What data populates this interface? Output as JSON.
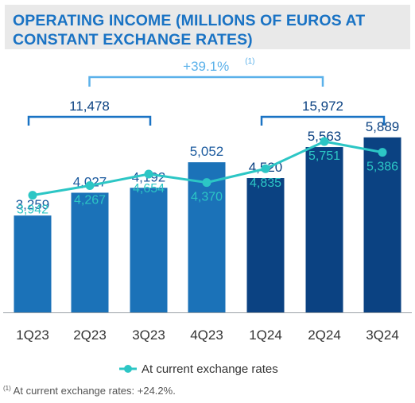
{
  "chart_data": {
    "type": "bar",
    "title": "OPERATING INCOME (MILLIONS OF EUROS AT CONSTANT EXCHANGE RATES)",
    "categories": [
      "1Q23",
      "2Q23",
      "3Q23",
      "4Q23",
      "1Q24",
      "2Q24",
      "3Q24"
    ],
    "bar_series": {
      "values": [
        3259,
        4027,
        4192,
        5052,
        4520,
        5563,
        5889
      ],
      "labels": [
        "3,259",
        "4,027",
        "4,192",
        "5,052",
        "4,520",
        "5,563",
        "5,889"
      ],
      "colors": [
        "#1b72b8",
        "#1b72b8",
        "#1b72b8",
        "#1b72b8",
        "#0b4282",
        "#0b4282",
        "#0b4282"
      ]
    },
    "line_series": {
      "name": "At current exchange rates",
      "values": [
        3942,
        4267,
        4654,
        4370,
        4835,
        5751,
        5386
      ],
      "labels": [
        "3,942",
        "4,267",
        "4,654",
        "4,370",
        "4,835",
        "5,751",
        "5,386"
      ],
      "color": "#2cc6c5"
    },
    "ylim": [
      0,
      6500
    ],
    "grid": false,
    "legend_position": "bottom-center",
    "brackets": [
      {
        "label": "11,478",
        "from": 0,
        "to": 2,
        "color": "#1a73c4",
        "text_color": "#0b4282"
      },
      {
        "label": "15,972",
        "from": 4,
        "to": 6,
        "color": "#1a73c4",
        "text_color": "#0b4282"
      }
    ],
    "growth_bracket": {
      "label": "+39.1%",
      "note_marker": "(1)",
      "from_bracket": 0,
      "to_bracket": 1,
      "color": "#5bb1ea"
    }
  },
  "footnote": {
    "marker": "(1)",
    "text": " At current exchange rates: +24.2%."
  }
}
